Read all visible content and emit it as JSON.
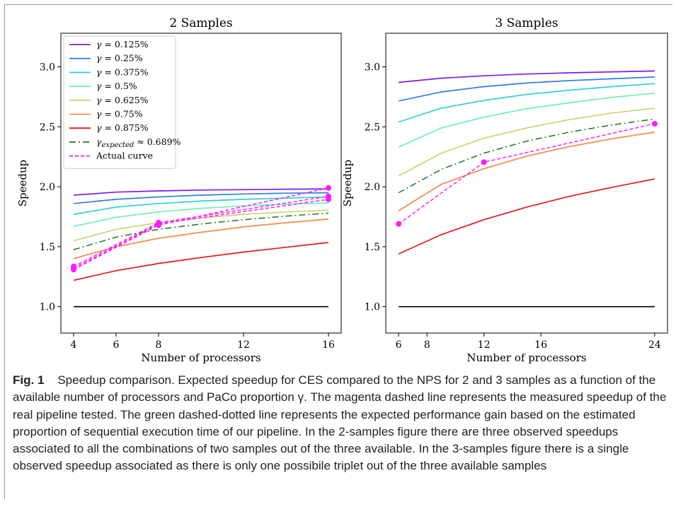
{
  "chart_data": [
    {
      "type": "line",
      "title": "2 Samples",
      "xlabel": "Number of processors",
      "ylabel": "Speedup",
      "xlim": [
        3.4,
        16.6
      ],
      "ylim": [
        0.78,
        3.28
      ],
      "xticks": [
        4,
        6,
        8,
        12,
        16
      ],
      "xtick_labels": [
        "4",
        "6",
        "8",
        "12",
        "16"
      ],
      "yticks": [
        1.0,
        1.5,
        2.0,
        2.5,
        3.0
      ],
      "ytick_labels": [
        "1.0",
        "1.5",
        "2.0",
        "2.5",
        "3.0"
      ],
      "legend_position": "top-left",
      "series": [
        {
          "name": "γ = 0.125%",
          "color": "#7a1cf0",
          "style": "solid",
          "x": [
            4,
            6,
            8,
            10,
            12,
            14,
            16
          ],
          "y": [
            1.93,
            1.955,
            1.965,
            1.972,
            1.976,
            1.979,
            1.982
          ]
        },
        {
          "name": "γ = 0.25%",
          "color": "#2f7fe0",
          "style": "solid",
          "x": [
            4,
            6,
            8,
            10,
            12,
            14,
            16
          ],
          "y": [
            1.86,
            1.895,
            1.915,
            1.93,
            1.94,
            1.946,
            1.95
          ]
        },
        {
          "name": "γ = 0.375%",
          "color": "#2ed2d2",
          "style": "solid",
          "x": [
            4,
            6,
            8,
            10,
            12,
            14,
            16
          ],
          "y": [
            1.77,
            1.83,
            1.86,
            1.88,
            1.895,
            1.905,
            1.915
          ]
        },
        {
          "name": "γ = 0.5%",
          "color": "#6ff0b4",
          "style": "solid",
          "x": [
            4,
            6,
            8,
            10,
            12,
            14,
            16
          ],
          "y": [
            1.67,
            1.745,
            1.79,
            1.82,
            1.84,
            1.855,
            1.865
          ]
        },
        {
          "name": "γ = 0.625%",
          "color": "#c8d66e",
          "style": "solid",
          "x": [
            4,
            6,
            8,
            10,
            12,
            14,
            16
          ],
          "y": [
            1.55,
            1.645,
            1.7,
            1.74,
            1.77,
            1.79,
            1.805
          ]
        },
        {
          "name": "γ = 0.75%",
          "color": "#f08c46",
          "style": "solid",
          "x": [
            4,
            6,
            8,
            10,
            12,
            14,
            16
          ],
          "y": [
            1.4,
            1.5,
            1.57,
            1.62,
            1.665,
            1.7,
            1.73
          ]
        },
        {
          "name": "γ = 0.875%",
          "color": "#e8161e",
          "style": "solid",
          "x": [
            4,
            6,
            8,
            10,
            12,
            14,
            16
          ],
          "y": [
            1.22,
            1.3,
            1.36,
            1.41,
            1.455,
            1.495,
            1.535
          ]
        },
        {
          "name": "γexpected ≈ 0.689%",
          "color": "#1a7a1a",
          "style": "dashdot",
          "x": [
            4,
            6,
            8,
            10,
            12,
            14,
            16
          ],
          "y": [
            1.475,
            1.58,
            1.645,
            1.69,
            1.725,
            1.755,
            1.78
          ]
        },
        {
          "name": "Actual curve",
          "color": "#ff1aff",
          "style": "dashed",
          "markers": true,
          "x": [
            4,
            8,
            16
          ],
          "y": [
            1.31,
            1.68,
            1.99
          ]
        },
        {
          "name": "",
          "color": "#ff1aff",
          "style": "dashed",
          "markers": true,
          "x": [
            4,
            8,
            16
          ],
          "y": [
            1.335,
            1.7,
            1.92
          ]
        },
        {
          "name": "",
          "color": "#ff1aff",
          "style": "dashed",
          "markers": true,
          "x": [
            4,
            8,
            16
          ],
          "y": [
            1.32,
            1.69,
            1.895
          ]
        },
        {
          "name": "",
          "color": "#000000",
          "style": "solid",
          "x": [
            4,
            16
          ],
          "y": [
            1.0,
            1.0
          ]
        }
      ]
    },
    {
      "type": "line",
      "title": "3 Samples",
      "xlabel": "Number of processors",
      "ylabel": "Speedup",
      "xlim": [
        5.1,
        24.9
      ],
      "ylim": [
        0.78,
        3.28
      ],
      "xticks": [
        6,
        8,
        12,
        16,
        24
      ],
      "xtick_labels": [
        "6",
        "8",
        "12",
        "16",
        "24"
      ],
      "yticks": [
        1.0,
        1.5,
        2.0,
        2.5,
        3.0
      ],
      "ytick_labels": [
        "1.0",
        "1.5",
        "2.0",
        "2.5",
        "3.0"
      ],
      "series": [
        {
          "name": "",
          "color": "#7a1cf0",
          "style": "solid",
          "x": [
            6,
            9,
            12,
            15,
            18,
            21,
            24
          ],
          "y": [
            2.87,
            2.905,
            2.925,
            2.94,
            2.95,
            2.958,
            2.965
          ]
        },
        {
          "name": "",
          "color": "#2f7fe0",
          "style": "solid",
          "x": [
            6,
            9,
            12,
            15,
            18,
            21,
            24
          ],
          "y": [
            2.715,
            2.79,
            2.835,
            2.865,
            2.885,
            2.9,
            2.915
          ]
        },
        {
          "name": "",
          "color": "#2ed2d2",
          "style": "solid",
          "x": [
            6,
            9,
            12,
            15,
            18,
            21,
            24
          ],
          "y": [
            2.54,
            2.655,
            2.72,
            2.77,
            2.805,
            2.835,
            2.86
          ]
        },
        {
          "name": "",
          "color": "#6ff0b4",
          "style": "solid",
          "x": [
            6,
            9,
            12,
            15,
            18,
            21,
            24
          ],
          "y": [
            2.33,
            2.49,
            2.58,
            2.65,
            2.7,
            2.745,
            2.78
          ]
        },
        {
          "name": "",
          "color": "#c8d66e",
          "style": "solid",
          "x": [
            6,
            9,
            12,
            15,
            18,
            21,
            24
          ],
          "y": [
            2.09,
            2.28,
            2.405,
            2.49,
            2.56,
            2.615,
            2.655
          ]
        },
        {
          "name": "",
          "color": "#f08c46",
          "style": "solid",
          "x": [
            6,
            9,
            12,
            15,
            18,
            21,
            24
          ],
          "y": [
            1.8,
            2.02,
            2.15,
            2.255,
            2.335,
            2.4,
            2.455
          ]
        },
        {
          "name": "",
          "color": "#e8161e",
          "style": "solid",
          "x": [
            6,
            9,
            12,
            15,
            18,
            21,
            24
          ],
          "y": [
            1.44,
            1.6,
            1.725,
            1.83,
            1.92,
            1.995,
            2.065
          ]
        },
        {
          "name": "",
          "color": "#1a7a1a",
          "style": "dashdot",
          "x": [
            6,
            9,
            12,
            15,
            18,
            21,
            24
          ],
          "y": [
            1.95,
            2.145,
            2.28,
            2.38,
            2.455,
            2.515,
            2.565
          ]
        },
        {
          "name": "",
          "color": "#ff1aff",
          "style": "dashed",
          "markers": true,
          "x": [
            6,
            12,
            24
          ],
          "y": [
            1.69,
            2.205,
            2.525
          ]
        },
        {
          "name": "",
          "color": "#000000",
          "style": "solid",
          "x": [
            6,
            24
          ],
          "y": [
            1.0,
            1.0
          ]
        }
      ]
    }
  ],
  "caption": {
    "label": "Fig. 1",
    "text": "Speedup comparison. Expected speedup for CES compared to the NPS for 2 and 3 samples as a function of the available number of processors and PaCo proportion γ. The magenta dashed line represents the measured speedup of the real pipeline tested. The green dashed-dotted line represents the expected performance gain based on the estimated proportion of sequential execution time of our pipeline. In the 2-samples figure there are three observed speedups associated to all the combinations of two samples out of the three available. In the 3-samples figure there is a single observed speedup associated as there is only one possibile triplet out of the three available samples"
  }
}
